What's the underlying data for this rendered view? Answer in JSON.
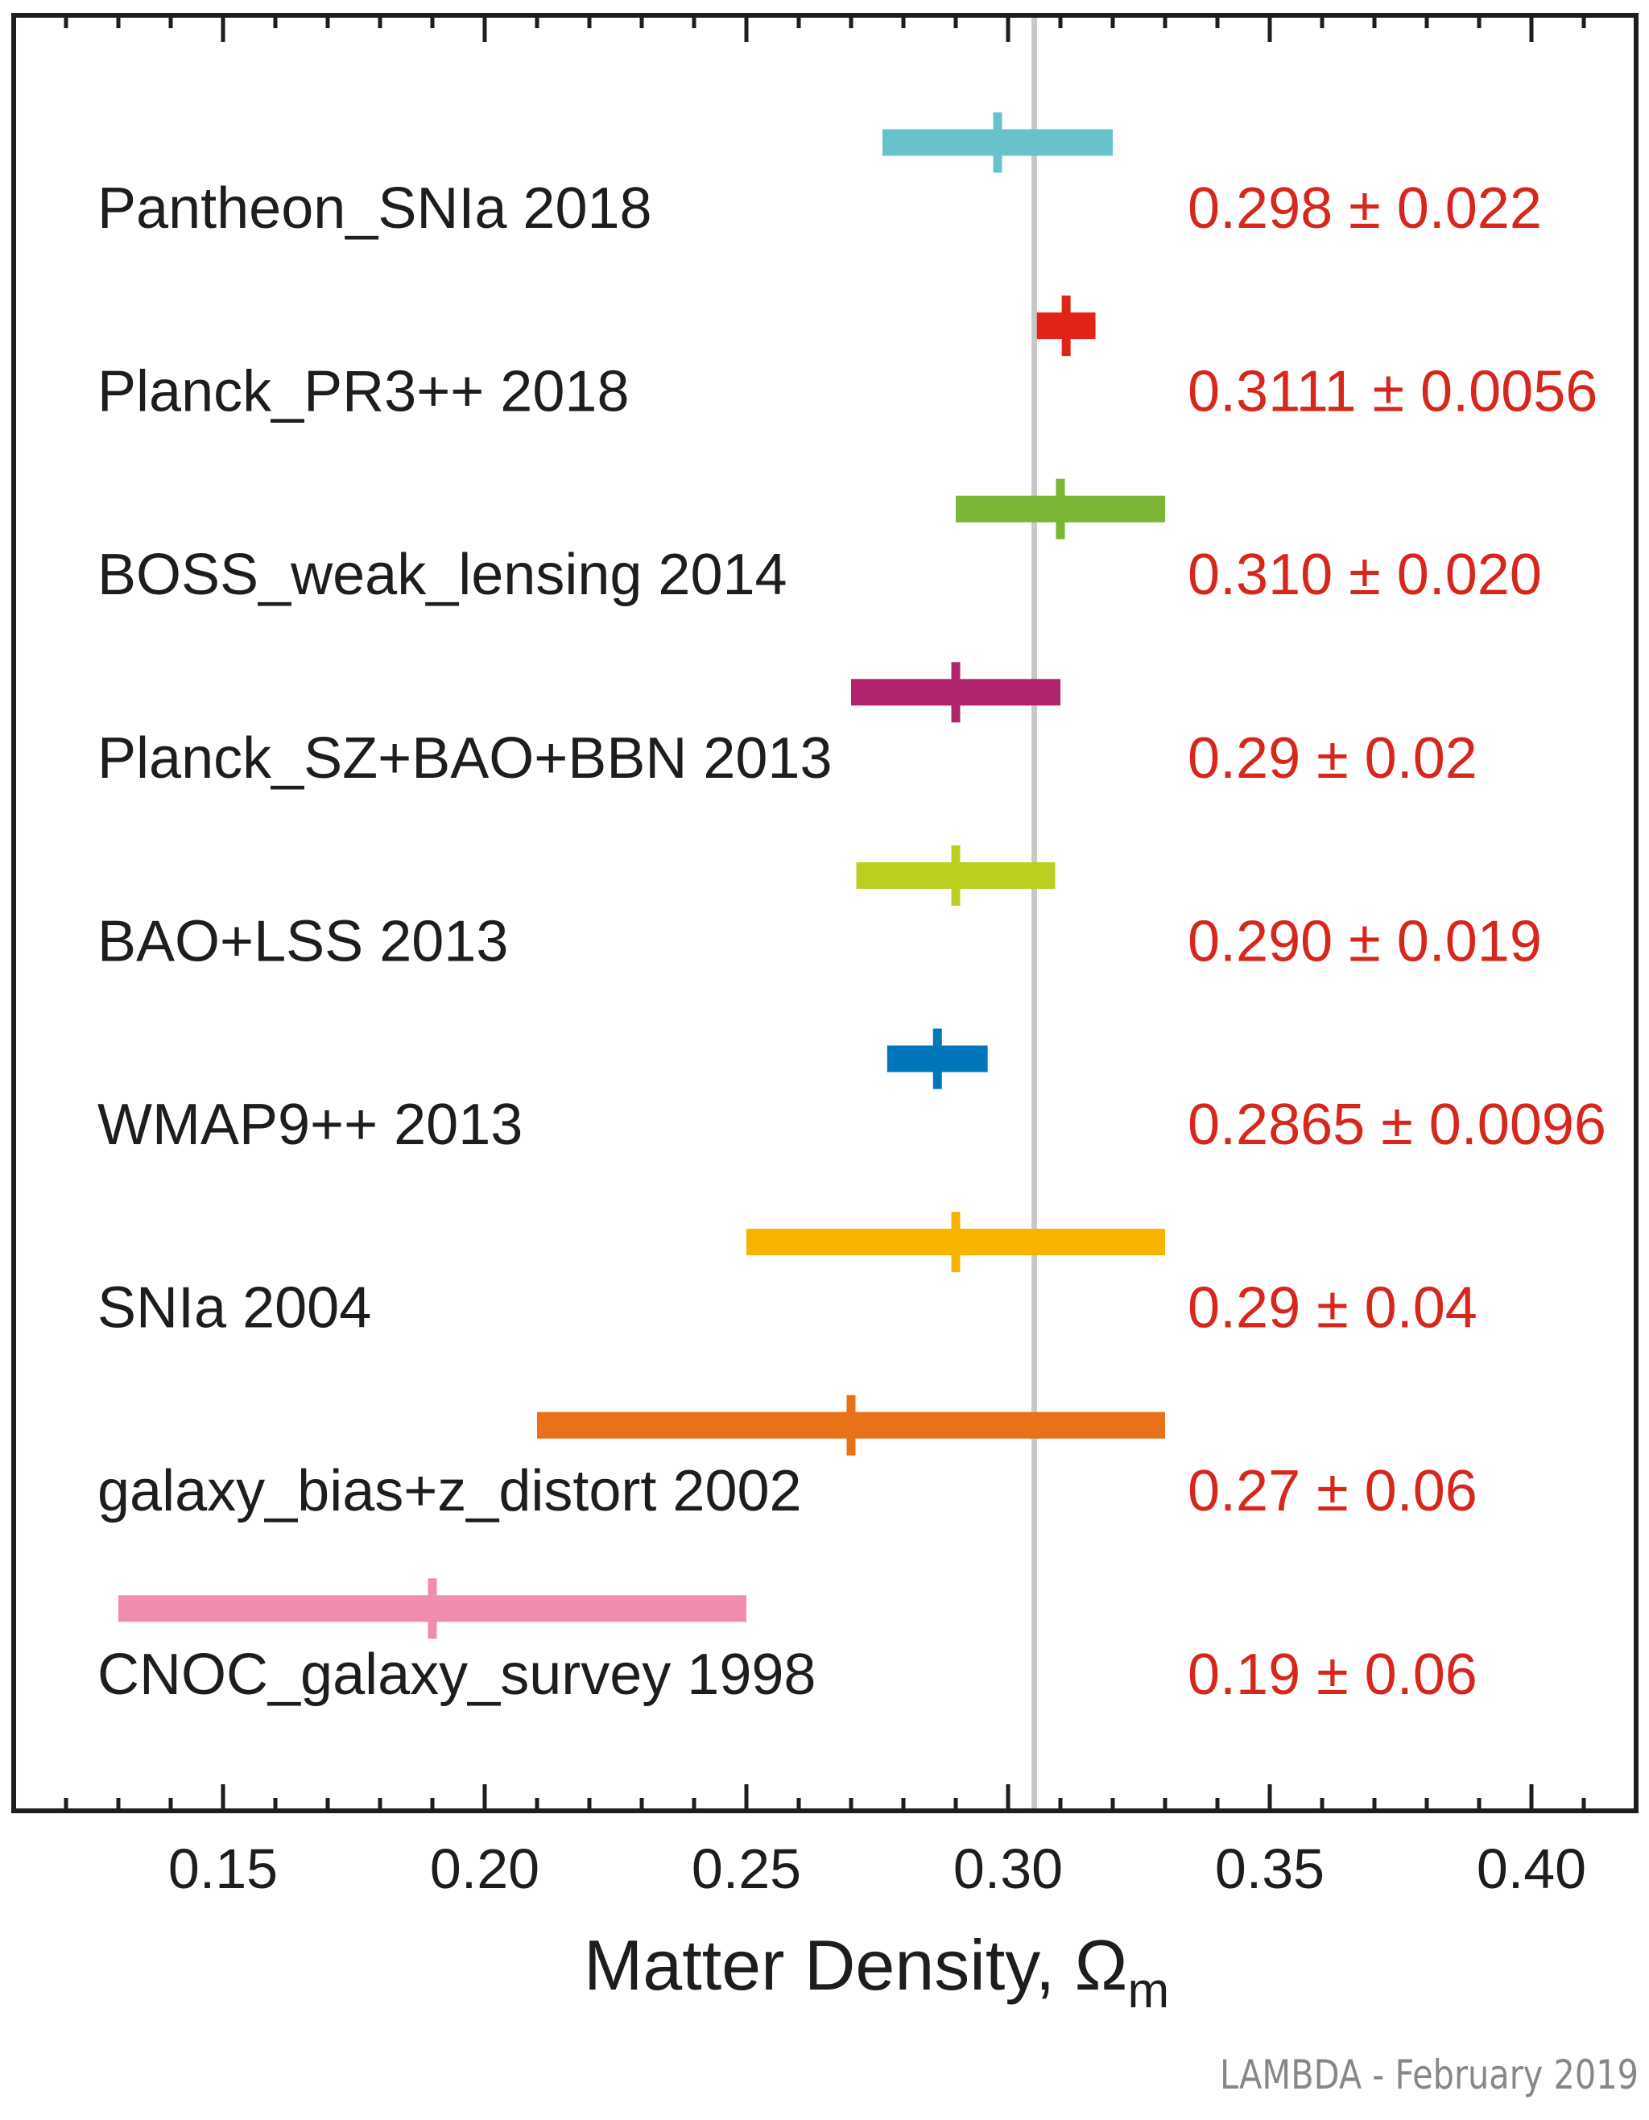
{
  "chart_data": {
    "type": "forest",
    "title": "",
    "xlabel": "Matter Density, Ω",
    "xlabel_subscript": "m",
    "ylabel": "",
    "xlim": [
      0.11,
      0.42
    ],
    "x_ticks_major": [
      0.15,
      0.2,
      0.25,
      0.3,
      0.35,
      0.4
    ],
    "x_tick_labels": [
      "0.15",
      "0.20",
      "0.25",
      "0.30",
      "0.35",
      "0.40"
    ],
    "x_minor_step": 0.01,
    "reference_line": 0.305,
    "grid": false,
    "legend": "none",
    "credit": "LAMBDA - February 2019",
    "series": [
      {
        "name": "Pantheon_SNIa 2018",
        "value": 0.298,
        "error": 0.022,
        "label": "0.298 ± 0.022",
        "color": "#68c2cc"
      },
      {
        "name": "Planck_PR3++ 2018",
        "value": 0.3111,
        "error": 0.0056,
        "label": "0.3111 ± 0.0056",
        "color": "#e02418"
      },
      {
        "name": "BOSS_weak_lensing 2014",
        "value": 0.31,
        "error": 0.02,
        "label": "0.310 ± 0.020",
        "color": "#7ab534"
      },
      {
        "name": "Planck_SZ+BAO+BBN 2013",
        "value": 0.29,
        "error": 0.02,
        "label": "0.29 ± 0.02",
        "color": "#b0246e"
      },
      {
        "name": "BAO+LSS 2013",
        "value": 0.29,
        "error": 0.019,
        "label": "0.290 ± 0.019",
        "color": "#bccf21"
      },
      {
        "name": "WMAP9++ 2013",
        "value": 0.2865,
        "error": 0.0096,
        "label": "0.2865 ± 0.0096",
        "color": "#0076bb"
      },
      {
        "name": "SNIa 2004",
        "value": 0.29,
        "error": 0.04,
        "label": "0.29 ± 0.04",
        "color": "#f6b400"
      },
      {
        "name": "galaxy_bias+z_distort 2002",
        "value": 0.27,
        "error": 0.06,
        "label": "0.27 ± 0.06",
        "color": "#e87219"
      },
      {
        "name": "CNOC_galaxy_survey 1998",
        "value": 0.19,
        "error": 0.06,
        "label": "0.19 ± 0.06",
        "color": "#f08cb0"
      }
    ],
    "styles": {
      "value_text_color": "#d7261c",
      "reference_line_color": "#c8c8c8",
      "axis_color": "#1d1d1b"
    }
  }
}
